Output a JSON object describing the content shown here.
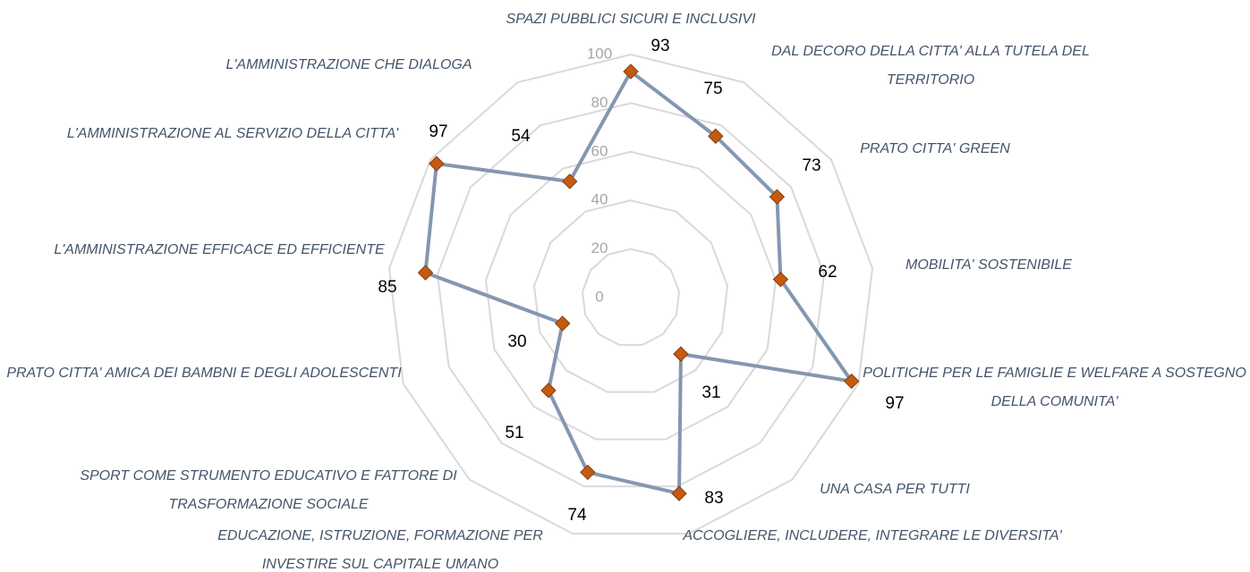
{
  "chart_data": {
    "type": "radar",
    "categories": [
      "SPAZI PUBBLICI SICURI E INCLUSIVI",
      "DAL DECORO DELLA CITTA' ALLA TUTELA DEL TERRITORIO",
      "PRATO CITTA' GREEN",
      "MOBILITA' SOSTENIBILE",
      "POLITICHE PER LE FAMIGLIE E WELFARE A SOSTEGNO DELLA COMUNITA'",
      "UNA CASA PER TUTTI",
      "ACCOGLIERE, INCLUDERE, INTEGRARE LE DIVERSITA'",
      "EDUCAZIONE, ISTRUZIONE, FORMAZIONE PER INVESTIRE SUL CAPITALE UMANO",
      "SPORT COME STRUMENTO EDUCATIVO E FATTORE DI TRASFORMAZIONE SOCIALE",
      "PRATO CITTA' AMICA DEI BAMBNI E DEGLI ADOLESCENTI",
      "L'AMMINISTRAZIONE EFFICACE ED EFFICIENTE",
      "L'AMMINISTRAZIONE AL SERVIZIO DELLA CITTA'",
      "L'AMMINISTRAZIONE CHE DIALOGA"
    ],
    "values": [
      93,
      75,
      73,
      62,
      97,
      31,
      83,
      74,
      51,
      30,
      85,
      97,
      54
    ],
    "color": "#8497b0",
    "marker_color": "#c55a11",
    "ylim": [
      0,
      100
    ],
    "yticks": [
      0,
      20,
      40,
      60,
      80,
      100
    ],
    "grid": true
  }
}
